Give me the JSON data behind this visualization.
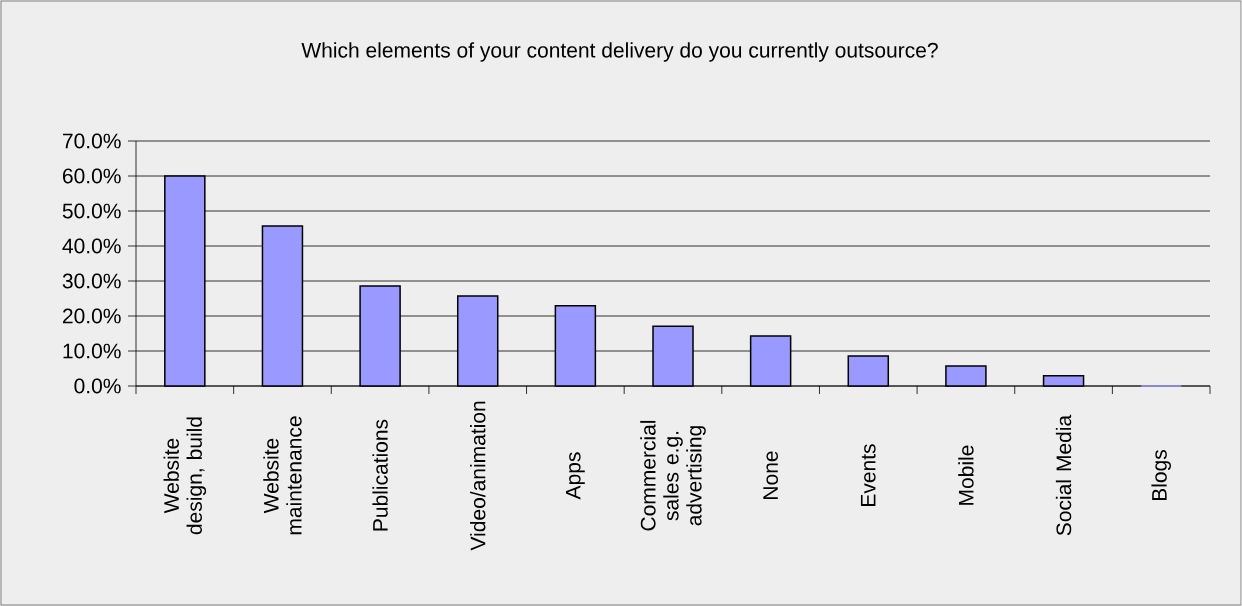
{
  "chart_data": {
    "type": "bar",
    "title": "Which elements of your content delivery do you currently outsource?",
    "categories": [
      "Website design, build",
      "Website maintenance",
      "Publications",
      "Video/animation",
      "Apps",
      "Commercial sales e.g. advertising",
      "None",
      "Events",
      "Mobile",
      "Social Media",
      "Blogs"
    ],
    "values": [
      60.0,
      45.7,
      28.6,
      25.7,
      22.9,
      17.1,
      14.3,
      8.6,
      5.7,
      2.9,
      0
    ],
    "color": "#9999ff",
    "ylim": [
      0,
      70
    ],
    "yticks": [
      {
        "value": 0,
        "label": "0.0%"
      },
      {
        "value": 10,
        "label": "10.0%"
      },
      {
        "value": 20,
        "label": "20.0%"
      },
      {
        "value": 30,
        "label": "30.0%"
      },
      {
        "value": 40,
        "label": "40.0%"
      },
      {
        "value": 50,
        "label": "50.0%"
      },
      {
        "value": 60,
        "label": "60.0%"
      },
      {
        "value": 70,
        "label": "70.0%"
      }
    ],
    "grid": "y"
  }
}
